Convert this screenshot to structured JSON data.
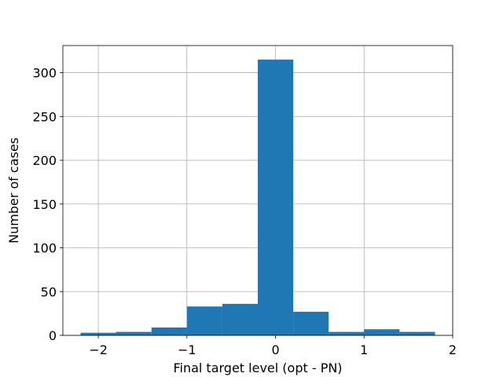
{
  "chart_data": {
    "type": "bar",
    "subtype": "histogram",
    "bins": [
      {
        "x0": -2.2,
        "x1": -1.8,
        "value": 3
      },
      {
        "x0": -1.8,
        "x1": -1.4,
        "value": 4
      },
      {
        "x0": -1.4,
        "x1": -1.0,
        "value": 9
      },
      {
        "x0": -1.0,
        "x1": -0.6,
        "value": 33
      },
      {
        "x0": -0.6,
        "x1": -0.2,
        "value": 36
      },
      {
        "x0": -0.2,
        "x1": 0.2,
        "value": 315
      },
      {
        "x0": 0.2,
        "x1": 0.6,
        "value": 27
      },
      {
        "x0": 0.6,
        "x1": 1.0,
        "value": 4
      },
      {
        "x0": 1.0,
        "x1": 1.4,
        "value": 7
      },
      {
        "x0": 1.4,
        "x1": 1.8,
        "value": 4
      }
    ],
    "xlabel": "Final target level (opt - PN)",
    "ylabel": "Number of cases",
    "xlim": [
      -2.4,
      2.0
    ],
    "ylim": [
      0,
      331
    ],
    "xticks": [
      -2,
      -1,
      0,
      1,
      2
    ],
    "xtick_labels": [
      "−2",
      "−1",
      "0",
      "1",
      "2"
    ],
    "yticks": [
      0,
      50,
      100,
      150,
      200,
      250,
      300
    ],
    "ytick_labels": [
      "0",
      "50",
      "100",
      "150",
      "200",
      "250",
      "300"
    ],
    "grid": true,
    "bar_color": "#1f77b4"
  }
}
